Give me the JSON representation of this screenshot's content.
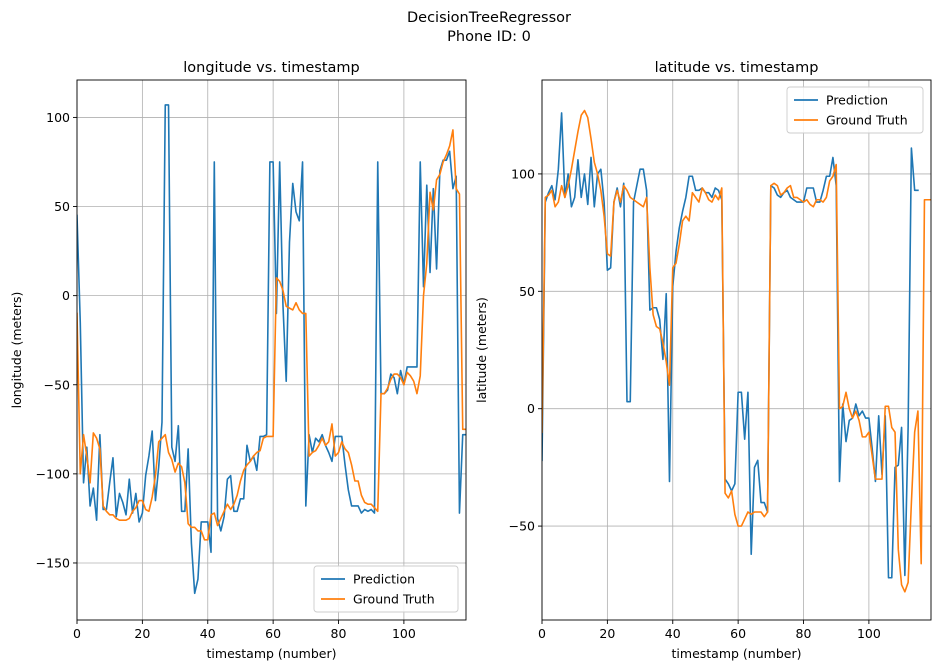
{
  "figure": {
    "title": "DecisionTreeRegressor",
    "subtitle": "Phone ID: 0"
  },
  "colors": {
    "prediction": "#1f77b4",
    "ground_truth": "#ff7f0e",
    "grid": "#b0b0b0",
    "axis": "#000000"
  },
  "chart_data": [
    {
      "type": "line",
      "title": "longitude vs. timestamp",
      "xlabel": "timestamp (number)",
      "ylabel": "longitude (meters)",
      "xlim": [
        0,
        119
      ],
      "ylim": [
        -182,
        121
      ],
      "xticks": [
        0,
        20,
        40,
        60,
        80,
        100
      ],
      "yticks": [
        -150,
        -100,
        -50,
        0,
        50,
        100
      ],
      "grid": true,
      "legend_position": "lower right",
      "series": [
        {
          "name": "Prediction",
          "color": "#1f77b4",
          "values": [
            45,
            -15,
            -105,
            -85,
            -118,
            -108,
            -126,
            -78,
            -120,
            -120,
            -105,
            -91,
            -124,
            -111,
            -116,
            -123,
            -103,
            -122,
            -111,
            -127,
            -122,
            -101,
            -90,
            -76,
            -115,
            -96,
            -71,
            107,
            107,
            -85,
            -93,
            -73,
            -121,
            -121,
            -86,
            -139,
            -167,
            -159,
            -127,
            -127,
            -127,
            -144,
            75,
            -125,
            -132,
            -124,
            -103,
            -101,
            -121,
            -121,
            -114,
            -114,
            -84,
            -93,
            -90,
            -98,
            -79,
            -79,
            -78,
            75,
            75,
            -10,
            75,
            -5,
            -48,
            30,
            63,
            47,
            42,
            75,
            -118,
            -78,
            -88,
            -80,
            -82,
            -78,
            -84,
            -88,
            -93,
            -79,
            -79,
            -79,
            -95,
            -109,
            -118,
            -118,
            -118,
            -122,
            -120,
            -121,
            -120,
            -122,
            75,
            -55,
            -55,
            -53,
            -44,
            -46,
            -55,
            -42,
            -50,
            -40,
            -40,
            -40,
            -40,
            75,
            5,
            62,
            13,
            60,
            15,
            70,
            76,
            76,
            81,
            60,
            67,
            -122,
            -78,
            -78
          ]
        },
        {
          "name": "Ground Truth",
          "color": "#ff7f0e",
          "values": [
            -10,
            -100,
            -78,
            -90,
            -105,
            -77,
            -80,
            -86,
            -118,
            -121,
            -123,
            -123,
            -125,
            -126,
            -126,
            -126,
            -125,
            -121,
            -119,
            -115,
            -115,
            -120,
            -121,
            -113,
            -101,
            -82,
            -80,
            -78,
            -88,
            -92,
            -99,
            -94,
            -96,
            -105,
            -128,
            -130,
            -130,
            -132,
            -132,
            -137,
            -137,
            -123,
            -122,
            -129,
            -125,
            -121,
            -117,
            -120,
            -117,
            -112,
            -104,
            -98,
            -95,
            -93,
            -90,
            -88,
            -87,
            -80,
            -79,
            -79,
            -79,
            10,
            8,
            3,
            -6,
            -7,
            -8,
            -4,
            -8,
            -10,
            -10,
            -90,
            -88,
            -87,
            -84,
            -80,
            -84,
            -82,
            -72,
            -90,
            -88,
            -82,
            -86,
            -88,
            -95,
            -104,
            -104,
            -112,
            -116,
            -117,
            -117,
            -119,
            -121,
            -55,
            -55,
            -52,
            -47,
            -44,
            -44,
            -46,
            -50,
            -43,
            -45,
            -48,
            -55,
            -45,
            0,
            18,
            58,
            48,
            65,
            68,
            75,
            79,
            84,
            93,
            60,
            57,
            -75,
            -75,
            -76
          ]
        }
      ]
    },
    {
      "type": "line",
      "title": "latitude vs. timestamp",
      "xlabel": "timestamp (number)",
      "ylabel": "latitude (meters)",
      "xlim": [
        0,
        119
      ],
      "ylim": [
        -90,
        140
      ],
      "xticks": [
        0,
        20,
        40,
        60,
        80,
        100
      ],
      "yticks": [
        -50,
        0,
        50,
        100
      ],
      "grid": true,
      "legend_position": "upper right",
      "series": [
        {
          "name": "Prediction",
          "color": "#1f77b4",
          "values": [
            -22,
            88,
            92,
            95,
            89,
            102,
            126,
            90,
            100,
            86,
            90,
            106,
            90,
            100,
            87,
            107,
            86,
            100,
            102,
            88,
            59,
            60,
            88,
            94,
            86,
            96,
            3,
            3,
            88,
            95,
            102,
            102,
            93,
            42,
            43,
            43,
            38,
            21,
            49,
            -31,
            52,
            67,
            77,
            84,
            90,
            99,
            99,
            93,
            93,
            94,
            92,
            92,
            90,
            94,
            93,
            89,
            -30,
            -32,
            -35,
            -32,
            7,
            7,
            -13,
            7,
            -62,
            -25,
            -22,
            -40,
            -40,
            -44,
            95,
            94,
            91,
            90,
            92,
            93,
            90,
            89,
            88,
            88,
            88,
            94,
            94,
            94,
            88,
            88,
            93,
            99,
            99,
            107,
            95,
            -31,
            2,
            -14,
            -5,
            -4,
            2,
            -3,
            -1,
            -4,
            -4,
            -17,
            -31,
            -3,
            -28,
            -3,
            -72,
            -72,
            -25,
            -24,
            -8,
            -71,
            -8,
            111,
            93,
            93
          ]
        },
        {
          "name": "Ground Truth",
          "color": "#ff7f0e",
          "values": [
            -10,
            90,
            91,
            93,
            86,
            88,
            95,
            90,
            95,
            102,
            110,
            118,
            125,
            127,
            124,
            115,
            105,
            100,
            93,
            82,
            66,
            65,
            88,
            93,
            88,
            95,
            93,
            90,
            89,
            88,
            87,
            86,
            90,
            60,
            40,
            35,
            34,
            28,
            20,
            10,
            60,
            62,
            70,
            80,
            82,
            80,
            92,
            90,
            88,
            94,
            92,
            89,
            88,
            91,
            89,
            94,
            -36,
            -38,
            -35,
            -45,
            -50,
            -50,
            -47,
            -44,
            -45,
            -44,
            -44,
            -44,
            -46,
            -44,
            95,
            96,
            95,
            91,
            92,
            94,
            95,
            90,
            90,
            89,
            88,
            89,
            87,
            86,
            89,
            89,
            88,
            90,
            97,
            99,
            104,
            0,
            1,
            7,
            0,
            -4,
            -1,
            -5,
            -12,
            -12,
            -10,
            -20,
            -30,
            -30,
            -30,
            1,
            1,
            -8,
            -10,
            -60,
            -75,
            -78,
            -74,
            -40,
            -10,
            -1,
            -66,
            89,
            89,
            89
          ]
        }
      ]
    }
  ]
}
